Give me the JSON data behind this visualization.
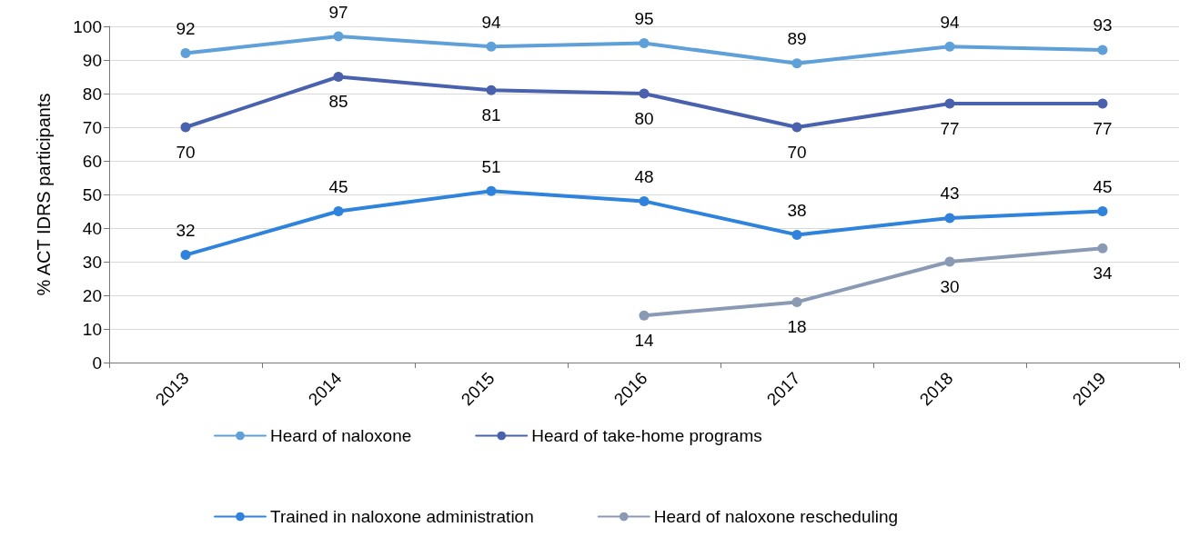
{
  "chart_data": {
    "type": "line",
    "ylabel": "% ACT IDRS participants",
    "categories": [
      "2013",
      "2014",
      "2015",
      "2016",
      "2017",
      "2018",
      "2019"
    ],
    "series": [
      {
        "name": "Heard of naloxone",
        "color": "#5fa0d8",
        "values": [
          92,
          97,
          94,
          95,
          89,
          94,
          93
        ]
      },
      {
        "name": "Heard of take-home programs",
        "color": "#4a62ad",
        "values": [
          70,
          85,
          81,
          80,
          70,
          77,
          77
        ]
      },
      {
        "name": "Trained in naloxone administration",
        "color": "#2f83dc",
        "values": [
          32,
          45,
          51,
          48,
          38,
          43,
          45
        ]
      },
      {
        "name": "Heard of naloxone rescheduling",
        "color": "#8a9ab4",
        "values": [
          null,
          null,
          null,
          14,
          18,
          30,
          34
        ]
      }
    ],
    "ylim": [
      0,
      100
    ],
    "yticks": [
      0,
      10,
      20,
      30,
      40,
      50,
      60,
      70,
      80,
      90,
      100
    ],
    "grid": "y",
    "legend": "bottom",
    "marker": "circle",
    "line_style": "solid",
    "data_labels": true
  }
}
